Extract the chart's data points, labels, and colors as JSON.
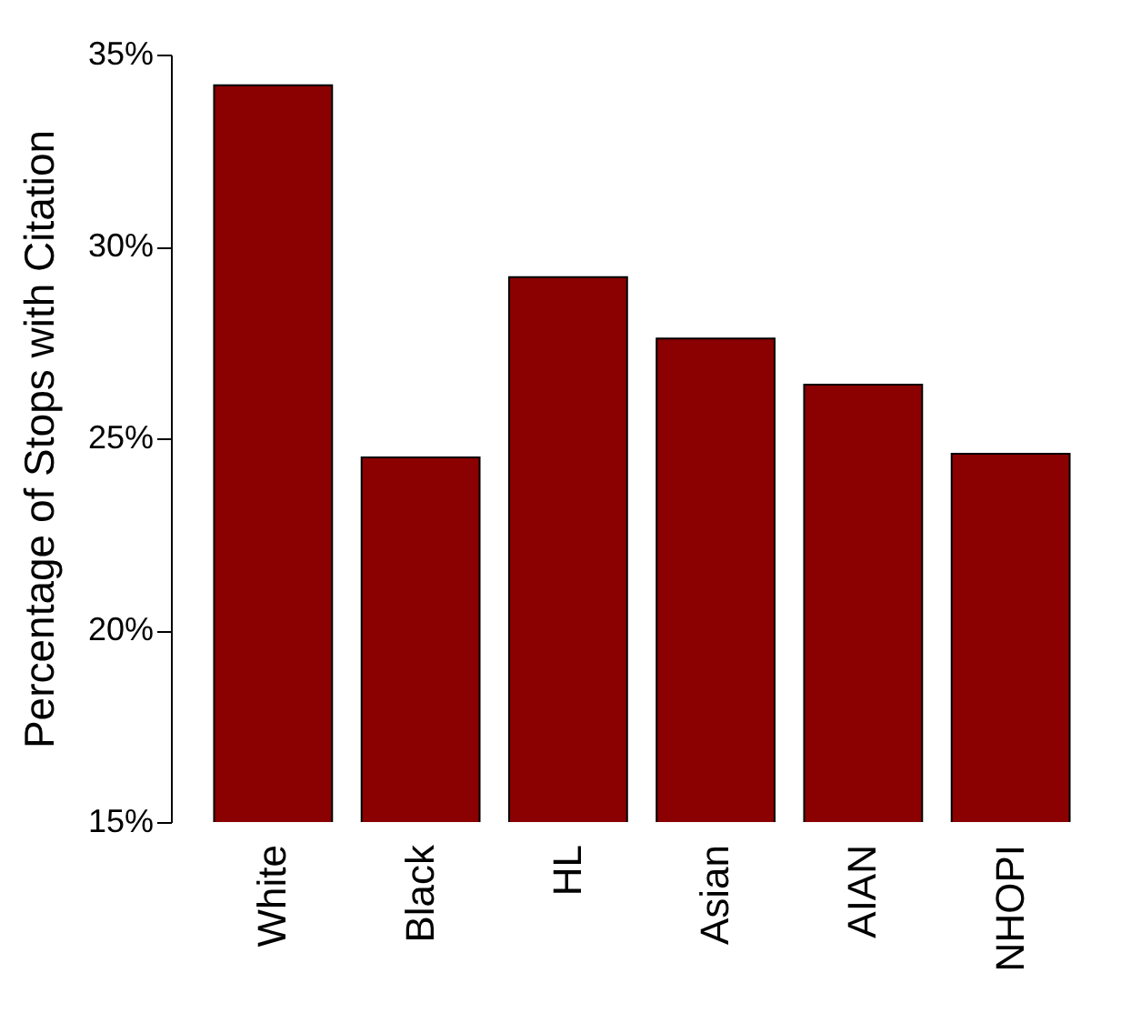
{
  "chart_data": {
    "type": "bar",
    "ylabel": "Percentage of Stops with Citation",
    "categories": [
      "White",
      "Black",
      "HL",
      "Asian",
      "AIAN",
      "NHOPI"
    ],
    "values": [
      34.2,
      24.5,
      29.2,
      27.6,
      26.4,
      24.6
    ],
    "color": "#8b0000",
    "ylim": [
      15,
      35
    ],
    "yticks": [
      {
        "value": 15,
        "label": "15%"
      },
      {
        "value": 20,
        "label": "20%"
      },
      {
        "value": 25,
        "label": "25%"
      },
      {
        "value": 30,
        "label": "30%"
      },
      {
        "value": 35,
        "label": "35%"
      }
    ],
    "grid": false
  }
}
